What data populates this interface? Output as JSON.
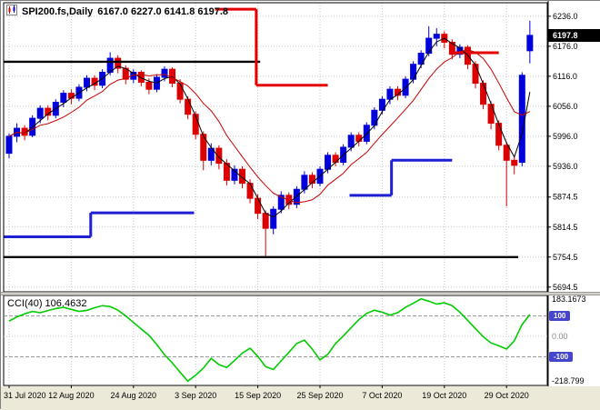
{
  "header": {
    "symbol_timeframe": "SPI200.fs,Daily",
    "ohlc_text": "6167.0 6227.0 6141.8 6197.8"
  },
  "colors": {
    "bull": "#0000dc",
    "bear": "#dc0000",
    "trend_blue": "#1e1ed2",
    "trend_red": "#e60000",
    "cci_line": "#00cc00",
    "grid": "#c8c8c8",
    "frame": "#000000",
    "level_badge_bg": "#4646cd",
    "price_badge_bg": "#000000",
    "strip_bg": "#ece9d8"
  },
  "chart_data": {
    "type": "candlestick",
    "symbol": "SPI200.fs",
    "timeframe": "Daily",
    "last_bar_ohlc": {
      "open": 6167.0,
      "high": 6227.0,
      "low": 6141.8,
      "close": 6197.8
    },
    "current_price_badge": "6197.8",
    "price_axis": {
      "min": 5685,
      "max": 6263,
      "ticks": [
        {
          "v": 6236.0,
          "label": "6236.0"
        },
        {
          "v": 6176.0,
          "label": "6176.0"
        },
        {
          "v": 6116.0,
          "label": "6116.0"
        },
        {
          "v": 6056.0,
          "label": "6056.0"
        },
        {
          "v": 5996.0,
          "label": "5996.0"
        },
        {
          "v": 5936.0,
          "label": "5936.0"
        },
        {
          "v": 5874.5,
          "label": "5874.5"
        },
        {
          "v": 5814.5,
          "label": "5814.5"
        },
        {
          "v": 5754.5,
          "label": "5754.5"
        },
        {
          "v": 5694.5,
          "label": "5694.5"
        }
      ]
    },
    "x_labels": [
      {
        "bar": 0,
        "label": "31 Jul 2020"
      },
      {
        "bar": 8,
        "label": "12 Aug 2020"
      },
      {
        "bar": 16,
        "label": "24 Aug 2020"
      },
      {
        "bar": 24,
        "label": "3 Sep 2020"
      },
      {
        "bar": 32,
        "label": "15 Sep 2020"
      },
      {
        "bar": 40,
        "label": "25 Sep 2020"
      },
      {
        "bar": 48,
        "label": "7 Oct 2020"
      },
      {
        "bar": 56,
        "label": "19 Oct 2020"
      },
      {
        "bar": 64,
        "label": "29 Oct 2020"
      }
    ],
    "candles": [
      [
        5962,
        6002,
        5952,
        5996
      ],
      [
        5996,
        6022,
        5984,
        6012
      ],
      [
        6012,
        6018,
        5988,
        5998
      ],
      [
        5998,
        6038,
        5994,
        6032
      ],
      [
        6032,
        6058,
        6022,
        6052
      ],
      [
        6052,
        6058,
        6028,
        6038
      ],
      [
        6038,
        6070,
        6032,
        6064
      ],
      [
        6064,
        6088,
        6054,
        6082
      ],
      [
        6082,
        6090,
        6060,
        6072
      ],
      [
        6072,
        6100,
        6066,
        6094
      ],
      [
        6094,
        6118,
        6086,
        6112
      ],
      [
        6112,
        6118,
        6088,
        6098
      ],
      [
        6098,
        6130,
        6092,
        6124
      ],
      [
        6124,
        6164,
        6118,
        6152
      ],
      [
        6152,
        6158,
        6122,
        6132
      ],
      [
        6132,
        6138,
        6100,
        6110
      ],
      [
        6110,
        6130,
        6102,
        6124
      ],
      [
        6124,
        6128,
        6096,
        6104
      ],
      [
        6104,
        6112,
        6080,
        6090
      ],
      [
        6090,
        6120,
        6084,
        6114
      ],
      [
        6114,
        6136,
        6106,
        6130
      ],
      [
        6130,
        6134,
        6094,
        6102
      ],
      [
        6102,
        6110,
        6062,
        6070
      ],
      [
        6070,
        6076,
        6030,
        6040
      ],
      [
        6040,
        6046,
        5990,
        6000
      ],
      [
        6000,
        6006,
        5928,
        5948
      ],
      [
        5948,
        5982,
        5938,
        5972
      ],
      [
        5972,
        5978,
        5930,
        5942
      ],
      [
        5942,
        5950,
        5898,
        5908
      ],
      [
        5908,
        5938,
        5900,
        5930
      ],
      [
        5930,
        5936,
        5892,
        5902
      ],
      [
        5902,
        5910,
        5862,
        5872
      ],
      [
        5872,
        5880,
        5830,
        5842
      ],
      [
        5842,
        5848,
        5754.5,
        5812
      ],
      [
        5812,
        5856,
        5800,
        5850
      ],
      [
        5850,
        5886,
        5842,
        5878
      ],
      [
        5878,
        5884,
        5850,
        5860
      ],
      [
        5860,
        5896,
        5852,
        5890
      ],
      [
        5890,
        5926,
        5882,
        5918
      ],
      [
        5918,
        5924,
        5892,
        5902
      ],
      [
        5902,
        5936,
        5896,
        5930
      ],
      [
        5930,
        5964,
        5922,
        5958
      ],
      [
        5958,
        5964,
        5936,
        5944
      ],
      [
        5944,
        5980,
        5938,
        5974
      ],
      [
        5974,
        6004,
        5966,
        5998
      ],
      [
        5998,
        6004,
        5976,
        5986
      ],
      [
        5986,
        6024,
        5980,
        6018
      ],
      [
        6018,
        6054,
        6010,
        6048
      ],
      [
        6048,
        6076,
        6040,
        6070
      ],
      [
        6070,
        6096,
        6060,
        6090
      ],
      [
        6090,
        6096,
        6068,
        6078
      ],
      [
        6078,
        6116,
        6072,
        6110
      ],
      [
        6110,
        6146,
        6102,
        6140
      ],
      [
        6140,
        6168,
        6132,
        6162
      ],
      [
        6162,
        6216,
        6156,
        6192
      ],
      [
        6192,
        6212,
        6176,
        6200
      ],
      [
        6200,
        6206,
        6172,
        6184
      ],
      [
        6184,
        6190,
        6150,
        6160
      ],
      [
        6160,
        6180,
        6152,
        6174
      ],
      [
        6174,
        6178,
        6130,
        6140
      ],
      [
        6140,
        6146,
        6092,
        6102
      ],
      [
        6102,
        6108,
        6050,
        6060
      ],
      [
        6060,
        6066,
        6010,
        6022
      ],
      [
        6022,
        6028,
        5968,
        5978
      ],
      [
        5978,
        5984,
        5856,
        5948
      ],
      [
        5948,
        5956,
        5920,
        5938
      ],
      [
        5944,
        6124,
        5936,
        6118
      ],
      [
        6167,
        6227,
        6141.8,
        6197.8
      ]
    ],
    "moving_averages": [
      {
        "name": "black",
        "period": 3,
        "method": "sma",
        "color": "#000000"
      },
      {
        "name": "red",
        "period": 8,
        "method": "sma",
        "color": "#c80000"
      }
    ],
    "trend_lines": {
      "support_segments": [
        {
          "from_edge": true,
          "from_bar": 0,
          "to_bar": 10.5,
          "price": 5795
        },
        {
          "from_bar": 10.5,
          "to_bar": 23.8,
          "price": 5843
        },
        {
          "from_bar": 43.8,
          "to_bar": 49.2,
          "price": 5878
        },
        {
          "from_bar": 49.2,
          "to_bar": 57,
          "price": 5948
        }
      ],
      "resistance_segments": [
        {
          "from_bar": 26.5,
          "to_bar": 31.8,
          "price": 6250
        },
        {
          "from_bar": 31.8,
          "to_bar": 41,
          "price": 6098
        },
        {
          "from_bar": 57,
          "to_bar": 63,
          "price": 6163
        }
      ]
    },
    "hlines": [
      {
        "price": 6145,
        "from_edge": true,
        "to_bar": 32.3
      },
      {
        "price": 5754.5,
        "from_edge": true,
        "to_bar": 65.5
      }
    ],
    "cci": {
      "label": "CCI(40) 106.4632",
      "period": 40,
      "current_value": 106.4632,
      "scale": {
        "max": 200,
        "min": -240
      },
      "max_label": "183.1673",
      "min_label": "-218.799",
      "zero_label": "0.00",
      "upper_level_label": "100",
      "lower_level_label": "-100",
      "levels": {
        "upper": 100,
        "lower": -100
      },
      "values": [
        75,
        95,
        110,
        122,
        116,
        126,
        136,
        142,
        132,
        122,
        127,
        140,
        150,
        146,
        128,
        100,
        68,
        36,
        5,
        -40,
        -90,
        -130,
        -175,
        -218.8,
        -190,
        -155,
        -108,
        -138,
        -152,
        -118,
        -82,
        -58,
        -98,
        -148,
        -162,
        -120,
        -78,
        -35,
        -18,
        -62,
        -115,
        -88,
        -35,
        2,
        42,
        82,
        112,
        128,
        118,
        104,
        116,
        142,
        162,
        183.17,
        172,
        158,
        164,
        150,
        118,
        78,
        38,
        -2,
        -32,
        -46,
        -62,
        -22,
        58,
        106.46
      ]
    }
  }
}
